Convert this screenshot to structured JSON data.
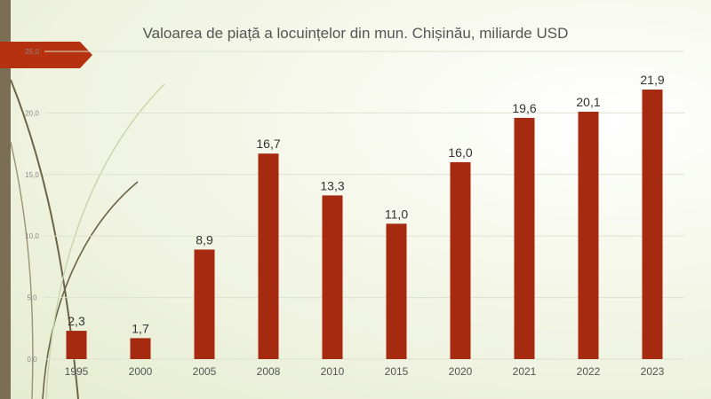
{
  "chart_data": {
    "type": "bar",
    "title": "Valoarea de piață a locuințelor din mun. Chișinău, miliarde USD",
    "xlabel": "",
    "ylabel": "",
    "categories": [
      "1995",
      "2000",
      "2005",
      "2008",
      "2010",
      "2015",
      "2020",
      "2021",
      "2022",
      "2023"
    ],
    "values": [
      2.3,
      1.7,
      8.9,
      16.7,
      13.3,
      11.0,
      16.0,
      19.6,
      20.1,
      21.9
    ],
    "data_labels": [
      "2,3",
      "1,7",
      "8,9",
      "16,7",
      "13,3",
      "11,0",
      "16,0",
      "19,6",
      "20,1",
      "21,9"
    ],
    "ylim": [
      0,
      25
    ],
    "yticks": [
      0,
      5,
      10,
      15,
      20,
      25
    ],
    "ytick_labels": [
      "0,0",
      "5,0",
      "10,0",
      "15,0",
      "20,0",
      "25,0"
    ],
    "grid": true,
    "legend": "none",
    "bar_color": "#a52a0f"
  },
  "colors": {
    "bar": "#a52a0f",
    "banner": "#b5310f",
    "side_strip": "#7a6f55",
    "decor_line": "#6b6447"
  }
}
